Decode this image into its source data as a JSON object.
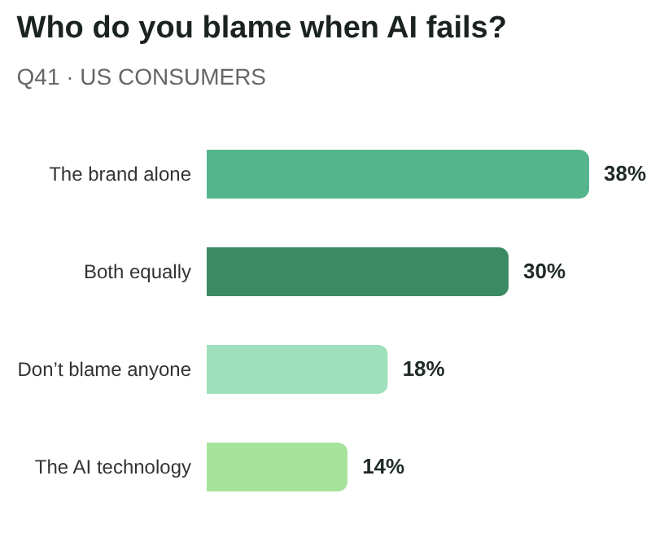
{
  "chart_data": {
    "type": "bar",
    "orientation": "horizontal",
    "title": "Who do you blame when AI fails?",
    "subtitle": "Q41 · US CONSUMERS",
    "categories": [
      "The brand alone",
      "Both equally",
      "Don’t blame anyone",
      "The AI technology"
    ],
    "values": [
      38,
      30,
      18,
      14
    ],
    "colors": [
      "#55b58c",
      "#3c8a64",
      "#9de0bb",
      "#a6e39a"
    ],
    "value_labels": [
      "38%",
      "30%",
      "18%",
      "14%"
    ]
  }
}
